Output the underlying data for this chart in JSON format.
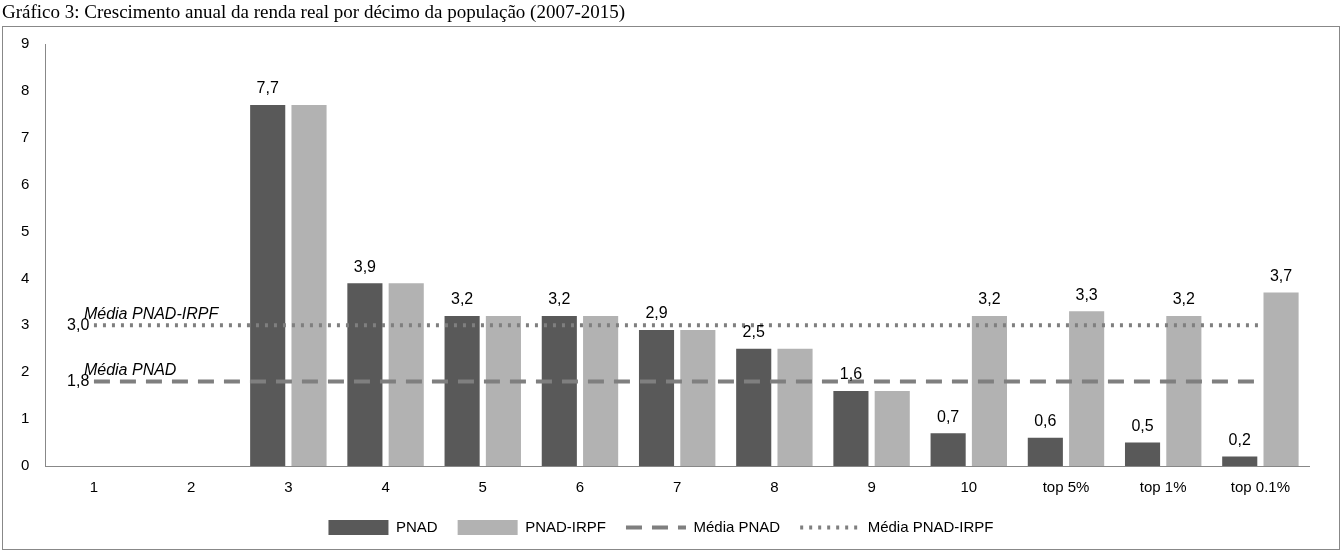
{
  "chart_data": {
    "type": "bar",
    "title": "Gráfico 3: Crescimento anual da renda real por décimo da população (2007-2015)",
    "categories": [
      "1",
      "2",
      "3",
      "4",
      "5",
      "6",
      "7",
      "8",
      "9",
      "10",
      "top 5%",
      "top 1%",
      "top 0.1%"
    ],
    "series": [
      {
        "name": "PNAD",
        "color": "#595959",
        "values": [
          null,
          null,
          7.7,
          3.9,
          3.2,
          3.2,
          2.9,
          2.5,
          1.6,
          0.7,
          0.6,
          0.5,
          0.2
        ],
        "value_labels": [
          null,
          null,
          "7,7",
          "3,9",
          "3,2",
          "3,2",
          "2,9",
          "2,5",
          "1,6",
          "0,7",
          "0,6",
          "0,5",
          "0,2"
        ]
      },
      {
        "name": "PNAD-IRPF",
        "color": "#b2b2b2",
        "values": [
          null,
          null,
          7.7,
          3.9,
          3.2,
          3.2,
          2.9,
          2.5,
          1.6,
          3.2,
          3.3,
          3.2,
          3.7
        ],
        "value_labels": [
          null,
          null,
          null,
          null,
          null,
          null,
          null,
          null,
          null,
          "3,2",
          "3,3",
          "3,2",
          "3,7"
        ]
      },
      {
        "name": "Média PNAD",
        "type": "line",
        "color": "#7f7f7f",
        "line_style": "dashed",
        "marker": "none",
        "values": [
          1.8,
          1.8,
          1.8,
          1.8,
          1.8,
          1.8,
          1.8,
          1.8,
          1.8,
          1.8,
          1.8,
          1.8,
          1.8
        ],
        "value_labels": [
          "1,8",
          null,
          null,
          null,
          null,
          null,
          null,
          null,
          null,
          null,
          null,
          null,
          null
        ]
      },
      {
        "name": "Média PNAD-IRPF",
        "type": "line",
        "color": "#7f7f7f",
        "line_style": "dotted",
        "marker": "none",
        "values": [
          3.0,
          3.0,
          3.0,
          3.0,
          3.0,
          3.0,
          3.0,
          3.0,
          3.0,
          3.0,
          3.0,
          3.0,
          3.0
        ],
        "value_labels": [
          "3,0",
          null,
          null,
          null,
          null,
          null,
          null,
          null,
          null,
          null,
          null,
          null,
          null
        ]
      }
    ],
    "annotations": [
      {
        "text": "Média PNAD",
        "x": "1",
        "y": 1.8
      },
      {
        "text": "Média PNAD-IRPF",
        "x": "1",
        "y": 3.0
      }
    ],
    "ylim": [
      0,
      9
    ],
    "yticks": [
      0,
      1,
      2,
      3,
      4,
      5,
      6,
      7,
      8,
      9
    ],
    "legend": "bottom"
  }
}
